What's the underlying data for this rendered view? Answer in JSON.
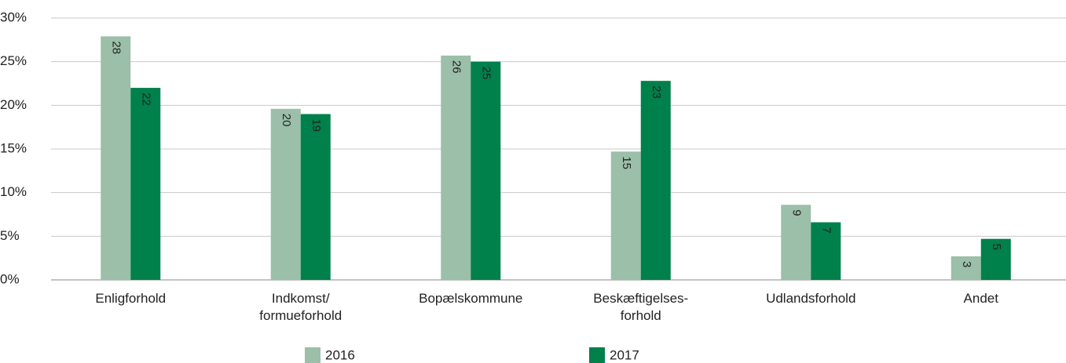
{
  "chart_data": {
    "type": "bar",
    "categories": [
      "Enligforhold",
      "Indkomst/\nformueforhold",
      "Bopælskommune",
      "Beskæftigelses-\nforhold",
      "Udlandsforhold",
      "Andet"
    ],
    "series": [
      {
        "name": "2016",
        "color": "#9bbfa8",
        "values": [
          27.9,
          19.6,
          25.7,
          14.7,
          8.6,
          2.7
        ],
        "value_labels": [
          "28",
          "20",
          "26",
          "15",
          "9",
          "3"
        ]
      },
      {
        "name": "2017",
        "color": "#00804a",
        "values": [
          22.0,
          19.0,
          25.0,
          22.8,
          6.6,
          4.7
        ],
        "value_labels": [
          "22",
          "19",
          "25",
          "23",
          "7",
          "5"
        ]
      }
    ],
    "ylim": [
      0,
      30
    ],
    "yticks": [
      {
        "value": 0,
        "label": "0%"
      },
      {
        "value": 5,
        "label": "5%"
      },
      {
        "value": 10,
        "label": "10%"
      },
      {
        "value": 15,
        "label": "15%"
      },
      {
        "value": 20,
        "label": "20%"
      },
      {
        "value": 25,
        "label": "25%"
      },
      {
        "value": 30,
        "label": "30%"
      }
    ],
    "grid": true
  }
}
